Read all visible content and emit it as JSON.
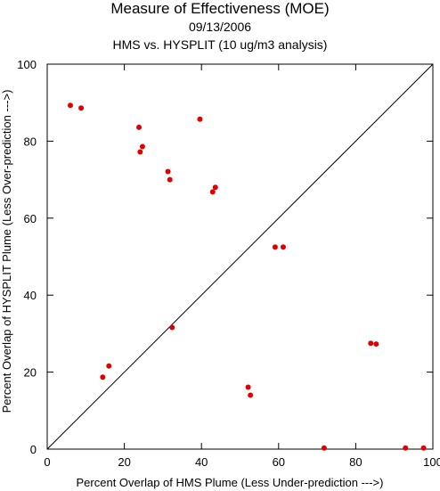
{
  "chart_data": {
    "type": "scatter",
    "title": "Measure of Effectiveness (MOE)",
    "subtitle": "09/13/2006",
    "subtitle2": "HMS vs. HYSPLIT  (10 ug/m3 analysis)",
    "xlabel": "Percent Overlap of HMS Plume (Less Under-prediction --->)",
    "ylabel": "Percent Overlap of HYSPLIT Plume (Less Over-prediction --->)",
    "xlim": [
      0,
      100
    ],
    "ylim": [
      0,
      100
    ],
    "xticks": [
      "0",
      "20",
      "40",
      "60",
      "80",
      "100"
    ],
    "yticks": [
      "0",
      "20",
      "40",
      "60",
      "80",
      "100"
    ],
    "grid": false,
    "reference_line": "diagonal",
    "point_color": "#e00000",
    "points": [
      {
        "x": 6.0,
        "y": 89.3
      },
      {
        "x": 8.8,
        "y": 88.6
      },
      {
        "x": 23.8,
        "y": 83.6
      },
      {
        "x": 39.6,
        "y": 85.7
      },
      {
        "x": 24.7,
        "y": 78.6
      },
      {
        "x": 24.1,
        "y": 77.2
      },
      {
        "x": 31.3,
        "y": 72.1
      },
      {
        "x": 31.8,
        "y": 70.0
      },
      {
        "x": 43.6,
        "y": 68.0
      },
      {
        "x": 42.9,
        "y": 66.8
      },
      {
        "x": 59.1,
        "y": 52.5
      },
      {
        "x": 61.2,
        "y": 52.5
      },
      {
        "x": 32.4,
        "y": 31.6
      },
      {
        "x": 16.0,
        "y": 21.6
      },
      {
        "x": 14.4,
        "y": 18.7
      },
      {
        "x": 52.1,
        "y": 16.1
      },
      {
        "x": 52.7,
        "y": 14.0
      },
      {
        "x": 83.9,
        "y": 27.5
      },
      {
        "x": 85.3,
        "y": 27.3
      },
      {
        "x": 71.8,
        "y": 0.3
      },
      {
        "x": 92.9,
        "y": 0.3
      },
      {
        "x": 97.6,
        "y": 0.3
      }
    ]
  }
}
